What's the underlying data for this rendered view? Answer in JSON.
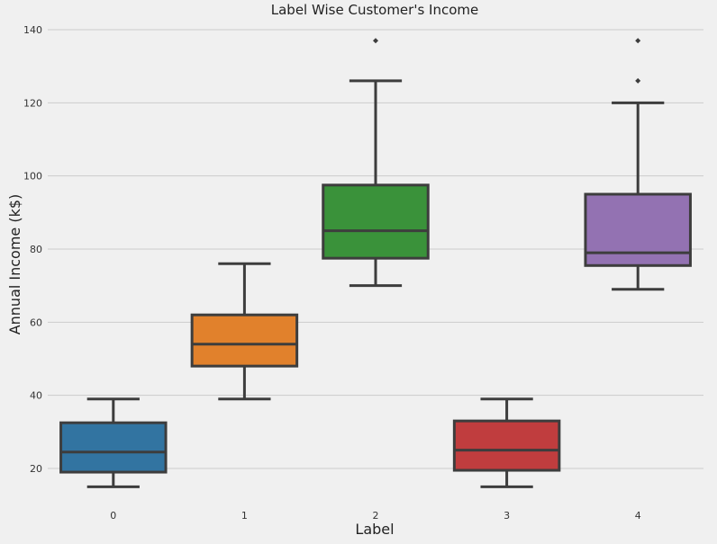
{
  "chart_data": {
    "type": "box",
    "title": "Label Wise Customer's Income",
    "xlabel": "Label",
    "ylabel": "Annual Income (k$)",
    "ylim": [
      10,
      143
    ],
    "yticks": [
      20,
      40,
      60,
      80,
      100,
      120,
      140
    ],
    "grid": "horizontal",
    "categories": [
      "0",
      "1",
      "2",
      "3",
      "4"
    ],
    "boxes": [
      {
        "category": "0",
        "whisker_low": 15,
        "q1": 19,
        "median": 24.5,
        "q3": 32.5,
        "whisker_high": 39,
        "outliers": [],
        "color": "#3274a1"
      },
      {
        "category": "1",
        "whisker_low": 39,
        "q1": 48,
        "median": 54,
        "q3": 62,
        "whisker_high": 76,
        "outliers": [],
        "color": "#e1812c"
      },
      {
        "category": "2",
        "whisker_low": 70,
        "q1": 77.5,
        "median": 85,
        "q3": 97.5,
        "whisker_high": 126,
        "outliers": [
          137
        ],
        "color": "#3a923a"
      },
      {
        "category": "3",
        "whisker_low": 15,
        "q1": 19.5,
        "median": 25,
        "q3": 33,
        "whisker_high": 39,
        "outliers": [],
        "color": "#c03d3e"
      },
      {
        "category": "4",
        "whisker_low": 69,
        "q1": 75.5,
        "median": 79,
        "q3": 95,
        "whisker_high": 120,
        "outliers": [
          126,
          137
        ],
        "color": "#9372b2"
      }
    ]
  }
}
